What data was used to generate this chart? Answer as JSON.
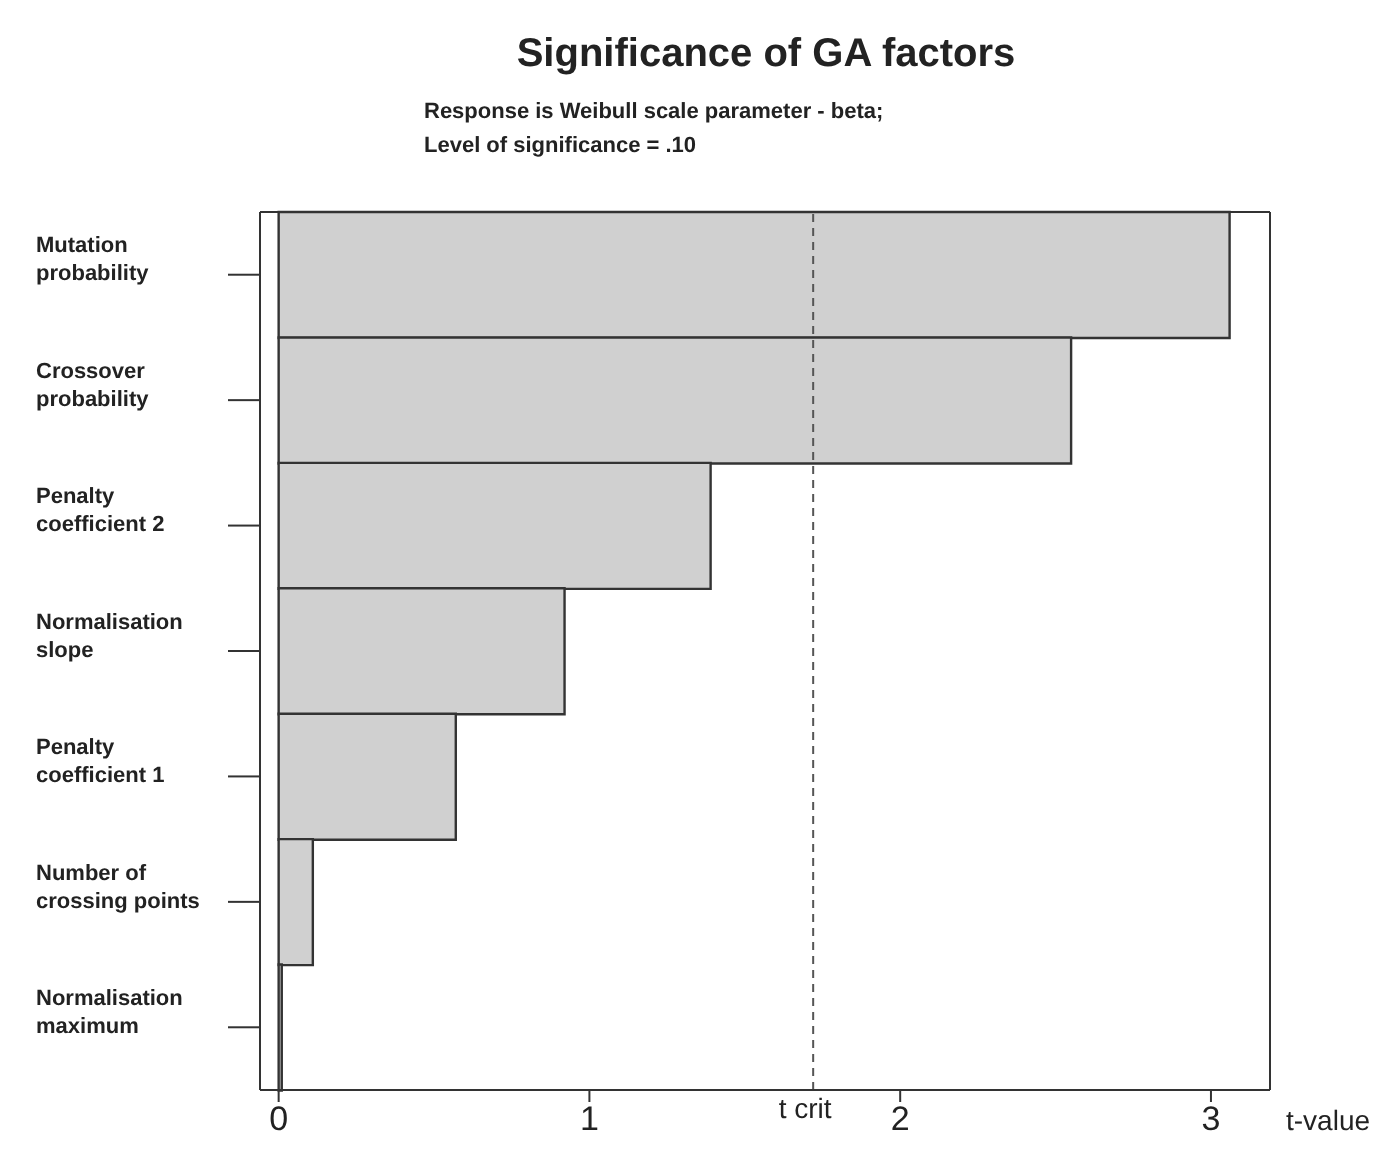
{
  "chart_data": {
    "type": "bar",
    "orientation": "horizontal",
    "title": "Significance of GA factors",
    "subtitle": "Response is Weibull scale parameter - beta;\nLevel of significance = .10",
    "xlabel": "t-value",
    "categories": [
      "Mutation probability",
      "Crossover probability",
      "Penalty coefficient 2",
      "Normalisation slope",
      "Penalty coefficient 1",
      "Number of crossing points",
      "Normalisation maximum"
    ],
    "values": [
      3.06,
      2.55,
      1.39,
      0.92,
      0.57,
      0.11,
      0.01
    ],
    "color": "#d0d0d0",
    "xlim": [
      -0.06,
      3.19
    ],
    "xticks": [
      0,
      1,
      2,
      3
    ],
    "ref_lines": [
      {
        "axis": "x",
        "value": 1.72,
        "label": "t crit",
        "line_style": "dashed",
        "color": "#555555"
      }
    ],
    "grid": false,
    "legend": false
  }
}
